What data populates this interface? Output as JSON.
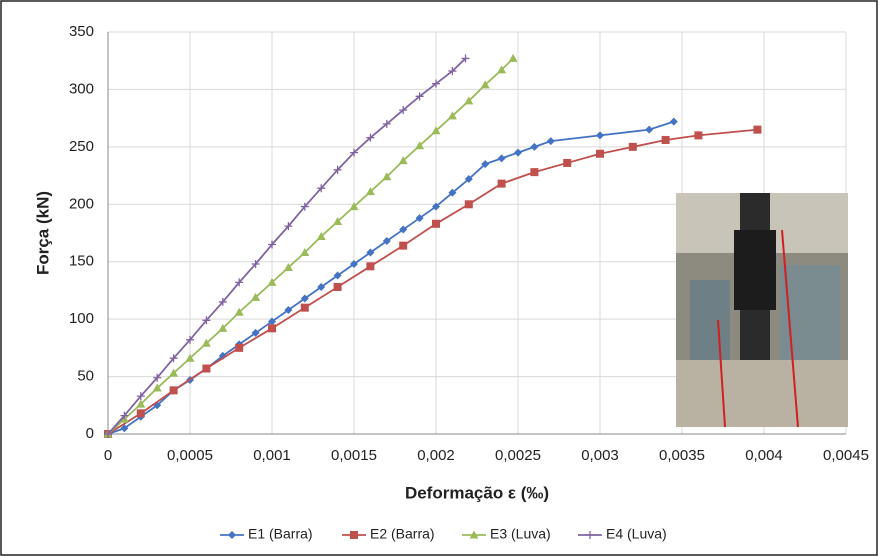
{
  "chart_data": {
    "type": "line",
    "x_label": "Deformação ε (‰)",
    "y_label": "Força (kN)",
    "xlim": [
      0,
      0.0045
    ],
    "ylim": [
      0,
      350
    ],
    "xticks": [
      0,
      {
        "value": 0.0005,
        "label": "0,0005"
      },
      {
        "value": 0.001,
        "label": "0,001"
      },
      {
        "value": 0.0015,
        "label": "0,0015"
      },
      {
        "value": 0.002,
        "label": "0,002"
      },
      {
        "value": 0.0025,
        "label": "0,0025"
      },
      {
        "value": 0.003,
        "label": "0,003"
      },
      {
        "value": 0.0035,
        "label": "0,0035"
      },
      {
        "value": 0.004,
        "label": "0,004"
      },
      {
        "value": 0.0045,
        "label": "0,0045"
      }
    ],
    "yticks": [
      0,
      50,
      100,
      150,
      200,
      250,
      300,
      350
    ],
    "grid": true,
    "legend": "bottom",
    "series": [
      {
        "name": "E1 (Barra)",
        "color": "#4472c4",
        "marker": "diamond",
        "x": [
          0,
          0.0001,
          0.0002,
          0.0003,
          0.0004,
          0.0005,
          0.0006,
          0.0007,
          0.0008,
          0.0009,
          0.001,
          0.0011,
          0.0012,
          0.0013,
          0.0014,
          0.0015,
          0.0016,
          0.0017,
          0.0018,
          0.0019,
          0.002,
          0.0021,
          0.0022,
          0.0023,
          0.0024,
          0.0025,
          0.0026,
          0.0027,
          0.003,
          0.0033,
          0.00345
        ],
        "values": [
          0,
          5,
          15,
          25,
          38,
          47,
          57,
          68,
          78,
          88,
          98,
          108,
          118,
          128,
          138,
          148,
          158,
          168,
          178,
          188,
          198,
          210,
          222,
          235,
          240,
          245,
          250,
          255,
          260,
          265,
          272
        ]
      },
      {
        "name": "E2 (Barra)",
        "color": "#c0504d",
        "marker": "square",
        "x": [
          0,
          0.0002,
          0.0004,
          0.0006,
          0.0008,
          0.001,
          0.0012,
          0.0014,
          0.0016,
          0.0018,
          0.002,
          0.0022,
          0.0024,
          0.0026,
          0.0028,
          0.003,
          0.0032,
          0.0034,
          0.0036,
          0.00396
        ],
        "values": [
          0,
          18,
          38,
          57,
          75,
          92,
          110,
          128,
          146,
          164,
          183,
          200,
          218,
          228,
          236,
          244,
          250,
          256,
          260,
          265
        ]
      },
      {
        "name": "E3 (Luva)",
        "color": "#9bbb59",
        "marker": "triangle",
        "x": [
          0,
          0.0001,
          0.0002,
          0.0003,
          0.0004,
          0.0005,
          0.0006,
          0.0007,
          0.0008,
          0.0009,
          0.001,
          0.0011,
          0.0012,
          0.0013,
          0.0014,
          0.0015,
          0.0016,
          0.0017,
          0.0018,
          0.0019,
          0.002,
          0.0021,
          0.0022,
          0.0023,
          0.0024,
          0.00247
        ],
        "values": [
          0,
          13,
          26,
          40,
          53,
          66,
          79,
          92,
          106,
          119,
          132,
          145,
          158,
          172,
          185,
          198,
          211,
          224,
          238,
          251,
          264,
          277,
          290,
          304,
          317,
          327
        ]
      },
      {
        "name": "E4 (Luva)",
        "color": "#8064a2",
        "marker": "plus",
        "x": [
          0,
          0.0001,
          0.0002,
          0.0003,
          0.0004,
          0.0005,
          0.0006,
          0.0007,
          0.0008,
          0.0009,
          0.001,
          0.0011,
          0.0012,
          0.0013,
          0.0014,
          0.0015,
          0.0016,
          0.0017,
          0.0018,
          0.0019,
          0.002,
          0.0021,
          0.00218
        ],
        "values": [
          0,
          16,
          33,
          49,
          66,
          82,
          99,
          115,
          132,
          148,
          165,
          181,
          198,
          214,
          230,
          245,
          258,
          270,
          282,
          294,
          305,
          316,
          327
        ]
      }
    ]
  }
}
